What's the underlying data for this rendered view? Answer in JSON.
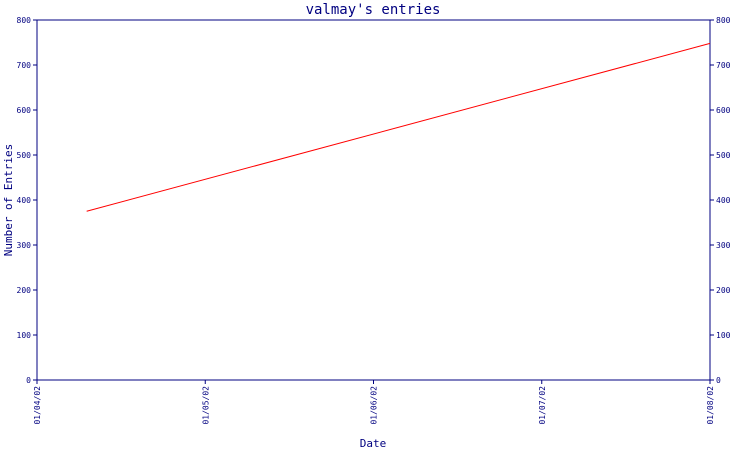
{
  "chart_data": {
    "type": "line",
    "title": "valmay's entries",
    "xlabel": "Date",
    "ylabel": "Number of Entries",
    "x_ticks": [
      "01/04/02",
      "01/05/02",
      "01/06/02",
      "01/07/02",
      "01/08/02"
    ],
    "y_ticks": [
      0,
      100,
      200,
      300,
      400,
      500,
      600,
      700,
      800
    ],
    "ylim": [
      0,
      800
    ],
    "xlim": [
      "2002-04-01",
      "2002-08-01"
    ],
    "grid": false,
    "series": [
      {
        "color": "#ff0000",
        "x": [
          "2002-04-10",
          "2002-08-01"
        ],
        "values": [
          375,
          748
        ]
      }
    ],
    "colors": {
      "axis": "#000080",
      "text": "#000080",
      "line": "#ff0000"
    }
  }
}
